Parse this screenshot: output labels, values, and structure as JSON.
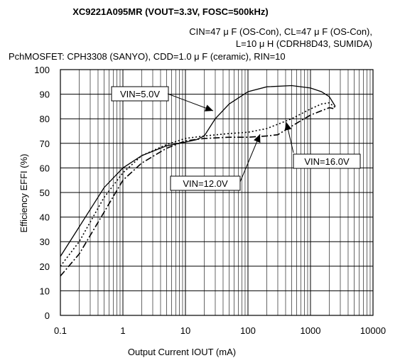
{
  "chart_data": {
    "type": "line",
    "title": "XC9221A095MR (VOUT=3.3V, FOSC=500kHz)",
    "conditions": [
      "CIN=47 μ F (OS-Con), CL=47 μ F (OS-Con),",
      "L=10 μ H (CDRH8D43, SUMIDA)",
      "PchMOSFET: CPH3308 (SANYO), CDD=1.0 μ F (ceramic), RIN=10"
    ],
    "xlabel": "Output Current IOUT (mA)",
    "ylabel": "Efficiency EFFI (%)",
    "xscale": "log",
    "xlim": [
      0.1,
      10000
    ],
    "ylim": [
      0,
      100
    ],
    "xticks": [
      0.1,
      1,
      10,
      100,
      1000,
      10000
    ],
    "xtick_labels": [
      "0.1",
      "1",
      "10",
      "100",
      "1000",
      "10000"
    ],
    "yticks": [
      0,
      10,
      20,
      30,
      40,
      50,
      60,
      70,
      80,
      90,
      100
    ],
    "ytick_labels": [
      "0",
      "10",
      "20",
      "30",
      "40",
      "50",
      "60",
      "70",
      "80",
      "90",
      "100"
    ],
    "grid": true,
    "series": [
      {
        "name": "VIN=5.0V",
        "style": "solid",
        "x": [
          0.1,
          0.2,
          0.5,
          1,
          2,
          5,
          10,
          15,
          20,
          30,
          50,
          100,
          200,
          500,
          1000,
          1500,
          2000,
          2500
        ],
        "y": [
          24,
          36,
          52,
          60,
          65,
          69,
          70.5,
          71.5,
          73,
          80,
          86,
          91,
          93,
          93.5,
          92.5,
          91,
          89,
          85
        ]
      },
      {
        "name": "VIN=12.0V",
        "style": "dotted",
        "x": [
          0.1,
          0.2,
          0.5,
          1,
          2,
          5,
          10,
          20,
          50,
          100,
          200,
          500,
          1000,
          1500,
          2000,
          2500
        ],
        "y": [
          20,
          30,
          48,
          58,
          65,
          69.5,
          72,
          73,
          74,
          74.5,
          76,
          80,
          84,
          86,
          86.5,
          84.5
        ]
      },
      {
        "name": "VIN=16.0V",
        "style": "dashdot",
        "x": [
          0.1,
          0.2,
          0.5,
          1,
          2,
          5,
          10,
          20,
          50,
          100,
          200,
          300,
          500,
          1000,
          2000,
          2500
        ],
        "y": [
          16,
          25,
          42,
          55,
          62,
          68,
          71,
          72,
          72.5,
          72.5,
          73,
          73.5,
          77,
          81.5,
          84.5,
          84
        ]
      }
    ],
    "annotations": [
      {
        "text": "VIN=5.0V"
      },
      {
        "text": "VIN=12.0V"
      },
      {
        "text": "VIN=16.0V"
      }
    ]
  }
}
